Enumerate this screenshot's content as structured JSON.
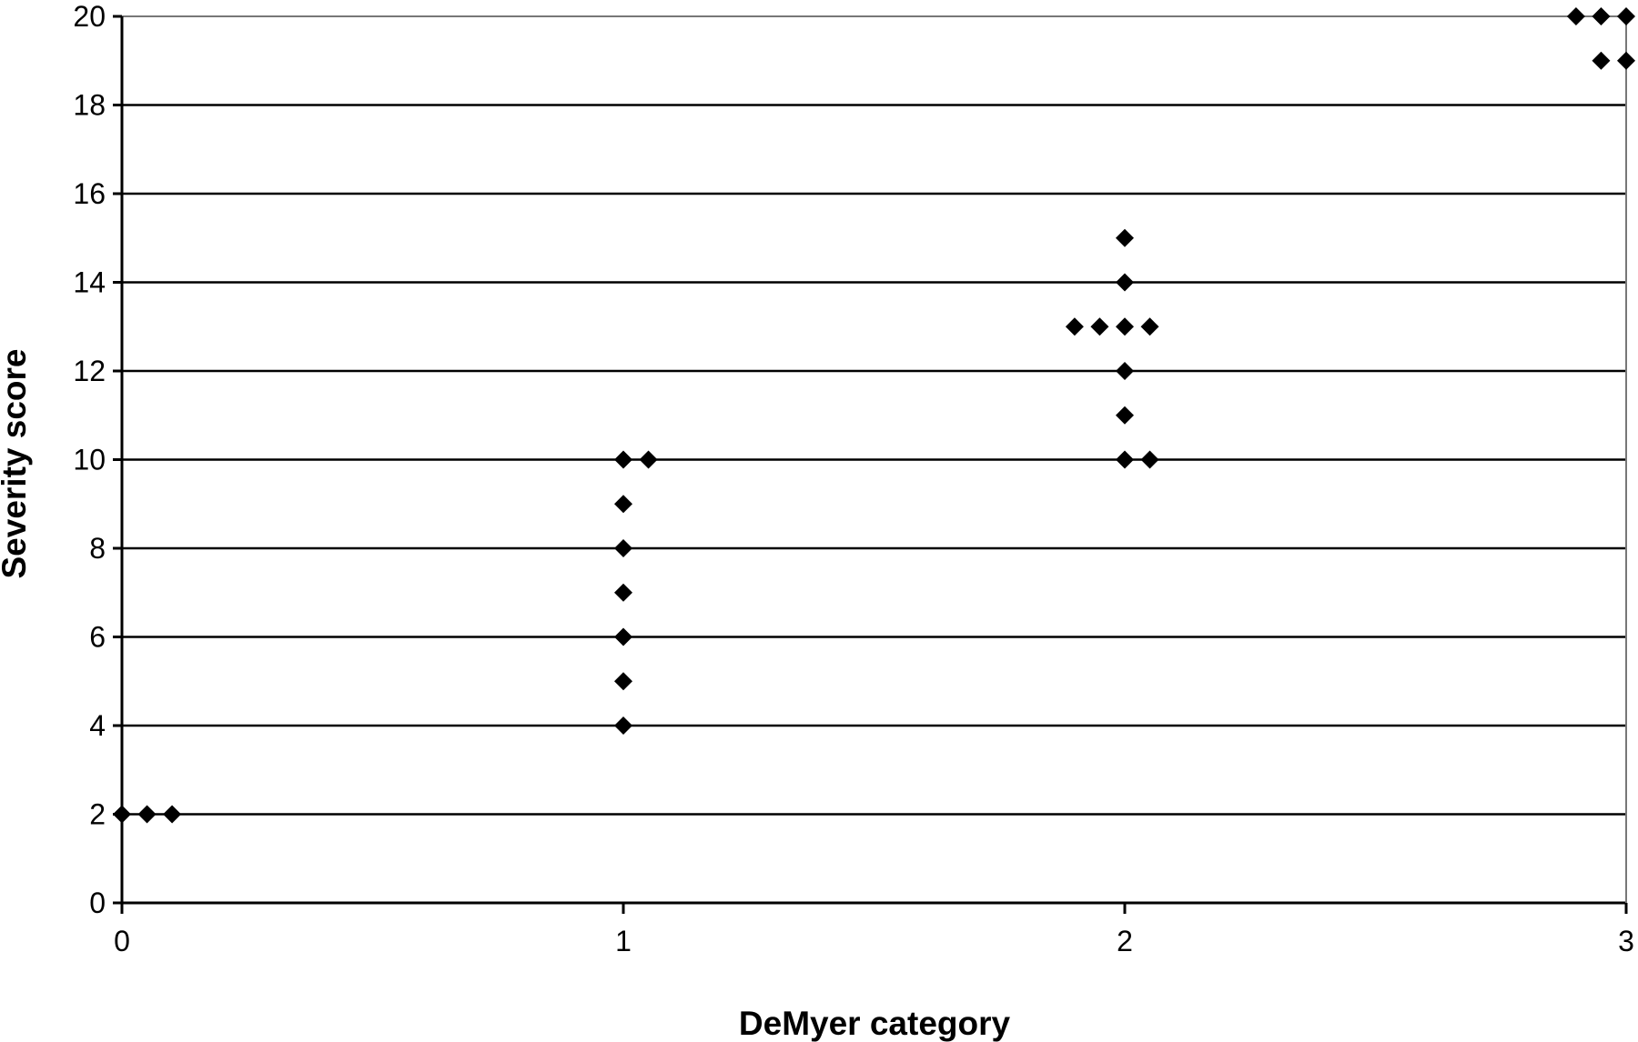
{
  "chart_data": {
    "type": "scatter",
    "title": "",
    "xlabel": "DeMyer category",
    "ylabel": "Severity score",
    "xlim": [
      0,
      3
    ],
    "ylim": [
      0,
      20
    ],
    "x_ticks": [
      "0",
      "1",
      "2",
      "3"
    ],
    "y_ticks": [
      "0",
      "2",
      "4",
      "6",
      "8",
      "10",
      "12",
      "14",
      "16",
      "18",
      "20"
    ],
    "grid": "horizontal",
    "marker": "diamond",
    "point_color": "#000000",
    "points": [
      {
        "x": 0,
        "y": 2
      },
      {
        "x": 0.05,
        "y": 2
      },
      {
        "x": 0.1,
        "y": 2
      },
      {
        "x": 1,
        "y": 4
      },
      {
        "x": 1,
        "y": 5
      },
      {
        "x": 1,
        "y": 6
      },
      {
        "x": 1,
        "y": 7
      },
      {
        "x": 1,
        "y": 8
      },
      {
        "x": 1,
        "y": 9
      },
      {
        "x": 1,
        "y": 10
      },
      {
        "x": 1.05,
        "y": 10
      },
      {
        "x": 2,
        "y": 10
      },
      {
        "x": 2.05,
        "y": 10
      },
      {
        "x": 2,
        "y": 11
      },
      {
        "x": 2,
        "y": 12
      },
      {
        "x": 1.9,
        "y": 13
      },
      {
        "x": 1.95,
        "y": 13
      },
      {
        "x": 2,
        "y": 13
      },
      {
        "x": 2.05,
        "y": 13
      },
      {
        "x": 2,
        "y": 14
      },
      {
        "x": 2,
        "y": 15
      },
      {
        "x": 2.95,
        "y": 19
      },
      {
        "x": 3,
        "y": 19
      },
      {
        "x": 2.9,
        "y": 20
      },
      {
        "x": 2.95,
        "y": 20
      },
      {
        "x": 3,
        "y": 20
      }
    ]
  }
}
